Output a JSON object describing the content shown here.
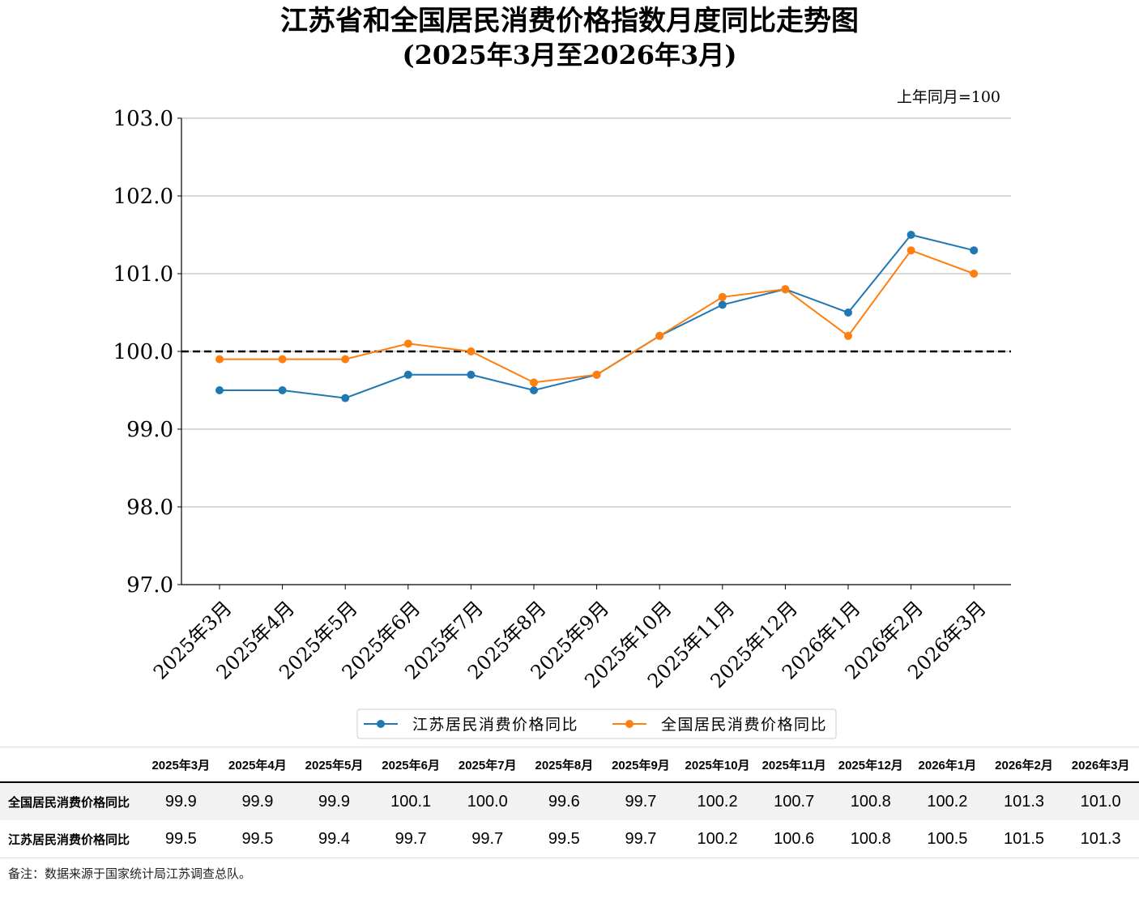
{
  "chart_data": {
    "type": "line",
    "title": "江苏省和全国居民消费价格指数月度同比走势图",
    "subtitle": "(2025年3月至2026年3月)",
    "unit_note": "上年同月=100",
    "categories": [
      "2025年3月",
      "2025年4月",
      "2025年5月",
      "2025年6月",
      "2025年7月",
      "2025年8月",
      "2025年9月",
      "2025年10月",
      "2025年11月",
      "2025年12月",
      "2026年1月",
      "2026年2月",
      "2026年3月"
    ],
    "series": [
      {
        "name": "江苏居民消费价格同比",
        "color": "#1f77b4",
        "values": [
          99.5,
          99.5,
          99.4,
          99.7,
          99.7,
          99.5,
          99.7,
          100.2,
          100.6,
          100.8,
          100.5,
          101.5,
          101.3
        ]
      },
      {
        "name": "全国居民消费价格同比",
        "color": "#ff7f0e",
        "values": [
          99.9,
          99.9,
          99.9,
          100.1,
          100.0,
          99.6,
          99.7,
          100.2,
          100.7,
          100.8,
          100.2,
          101.3,
          101.0
        ]
      }
    ],
    "ylim": [
      97.0,
      103.0
    ],
    "yticks": [
      "97.0",
      "98.0",
      "99.0",
      "100.0",
      "101.0",
      "102.0",
      "103.0"
    ],
    "reference_line": 100.0,
    "grid": "horizontal",
    "legend": "bottom-center"
  },
  "table": {
    "headers": [
      "2025年3月",
      "2025年4月",
      "2025年5月",
      "2025年6月",
      "2025年7月",
      "2025年8月",
      "2025年9月",
      "2025年10月",
      "2025年11月",
      "2025年12月",
      "2026年1月",
      "2026年2月",
      "2026年3月"
    ],
    "rows": [
      {
        "label": "全国居民消费价格同比",
        "values": [
          "99.9",
          "99.9",
          "99.9",
          "100.1",
          "100.0",
          "99.6",
          "99.7",
          "100.2",
          "100.7",
          "100.8",
          "100.2",
          "101.3",
          "101.0"
        ]
      },
      {
        "label": "江苏居民消费价格同比",
        "values": [
          "99.5",
          "99.5",
          "99.4",
          "99.7",
          "99.7",
          "99.5",
          "99.7",
          "100.2",
          "100.6",
          "100.8",
          "100.5",
          "101.5",
          "101.3"
        ]
      }
    ]
  },
  "footnote": "备注：数据来源于国家统计局江苏调查总队。"
}
